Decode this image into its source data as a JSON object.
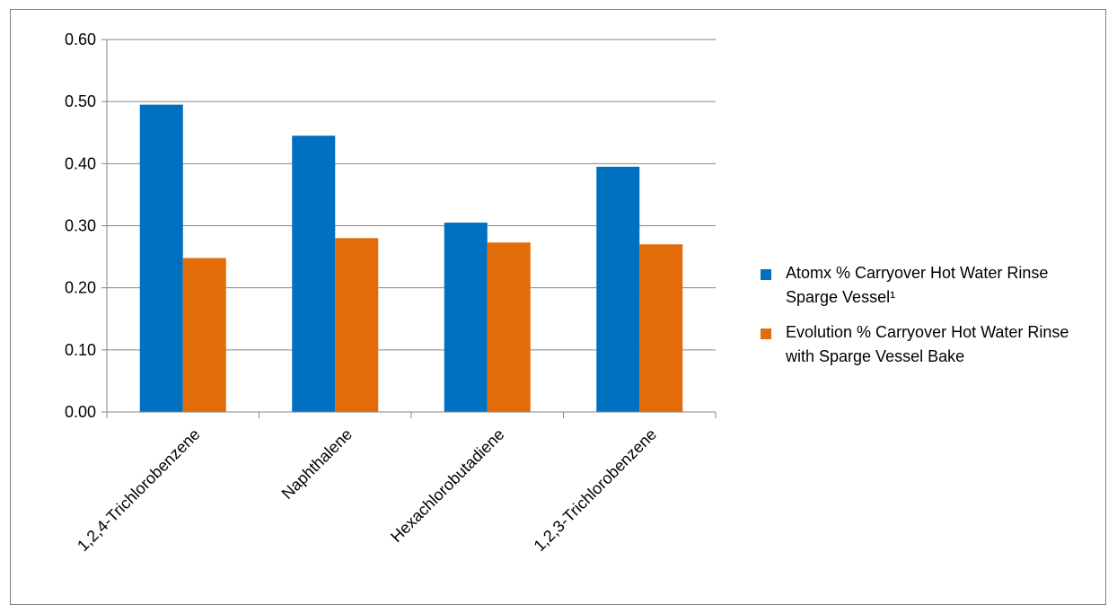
{
  "chart_data": {
    "type": "bar",
    "categories": [
      "1,2,4-Trichlorobenzene",
      "Naphthalene",
      "Hexachlorobutadiene",
      "1,2,3-Trichlorobenzene"
    ],
    "series": [
      {
        "name": "Atomx % Carryover Hot Water Rinse Sparge Vessel¹",
        "values": [
          0.495,
          0.445,
          0.305,
          0.395
        ],
        "color": "#0070C0"
      },
      {
        "name": "Evolution % Carryover Hot Water Rinse with Sparge Vessel Bake",
        "values": [
          0.248,
          0.28,
          0.273,
          0.27
        ],
        "color": "#E36C0A"
      }
    ],
    "title": "",
    "xlabel": "",
    "ylabel": "",
    "ylim": [
      0,
      0.6
    ],
    "yticks": [
      "0.00",
      "0.10",
      "0.20",
      "0.30",
      "0.40",
      "0.50",
      "0.60"
    ],
    "grid": true,
    "legend_position": "right"
  }
}
